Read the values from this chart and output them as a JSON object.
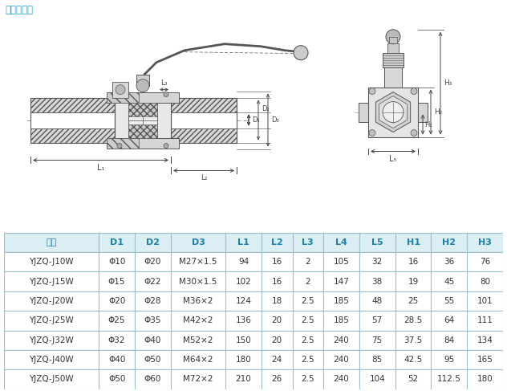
{
  "title": "外螺纹连接",
  "title_color": "#1aa3cc",
  "table_header": [
    "型号",
    "D1",
    "D2",
    "D3",
    "L1",
    "L2",
    "L3",
    "L4",
    "L5",
    "H1",
    "H2",
    "H3"
  ],
  "table_data": [
    [
      "YJZQ-J10W",
      "Φ10",
      "Φ20",
      "M27×1.5",
      "94",
      "16",
      "2",
      "105",
      "32",
      "16",
      "36",
      "76"
    ],
    [
      "YJZQ-J15W",
      "Φ15",
      "Φ22",
      "M30×1.5",
      "102",
      "16",
      "2",
      "147",
      "38",
      "19",
      "45",
      "80"
    ],
    [
      "YJZQ-J20W",
      "Φ20",
      "Φ28",
      "M36×2",
      "124",
      "18",
      "2.5",
      "185",
      "48",
      "25",
      "55",
      "101"
    ],
    [
      "YJZQ-J25W",
      "Φ25",
      "Φ35",
      "M42×2",
      "136",
      "20",
      "2.5",
      "185",
      "57",
      "28.5",
      "64",
      "111"
    ],
    [
      "YJZQ-J32W",
      "Φ32",
      "Φ40",
      "M52×2",
      "150",
      "20",
      "2.5",
      "240",
      "75",
      "37.5",
      "84",
      "134"
    ],
    [
      "YJZQ-J40W",
      "Φ40",
      "Φ50",
      "M64×2",
      "180",
      "24",
      "2.5",
      "240",
      "85",
      "42.5",
      "95",
      "165"
    ],
    [
      "YJZQ-J50W",
      "Φ50",
      "Φ60",
      "M72×2",
      "210",
      "26",
      "2.5",
      "240",
      "104",
      "52",
      "112.5",
      "180"
    ]
  ],
  "header_bg": "#daeef3",
  "header_text_color": "#1a7faa",
  "row_bg": "#ffffff",
  "border_color": "#9bbfcc",
  "cell_text_color": "#333333",
  "col_widths": [
    1.9,
    0.72,
    0.72,
    1.1,
    0.72,
    0.62,
    0.62,
    0.72,
    0.72,
    0.72,
    0.72,
    0.72
  ],
  "dim_color": "#444444",
  "line_color": "#555555",
  "hatch_color": "#888888",
  "bg_color": "#f5f8fa"
}
